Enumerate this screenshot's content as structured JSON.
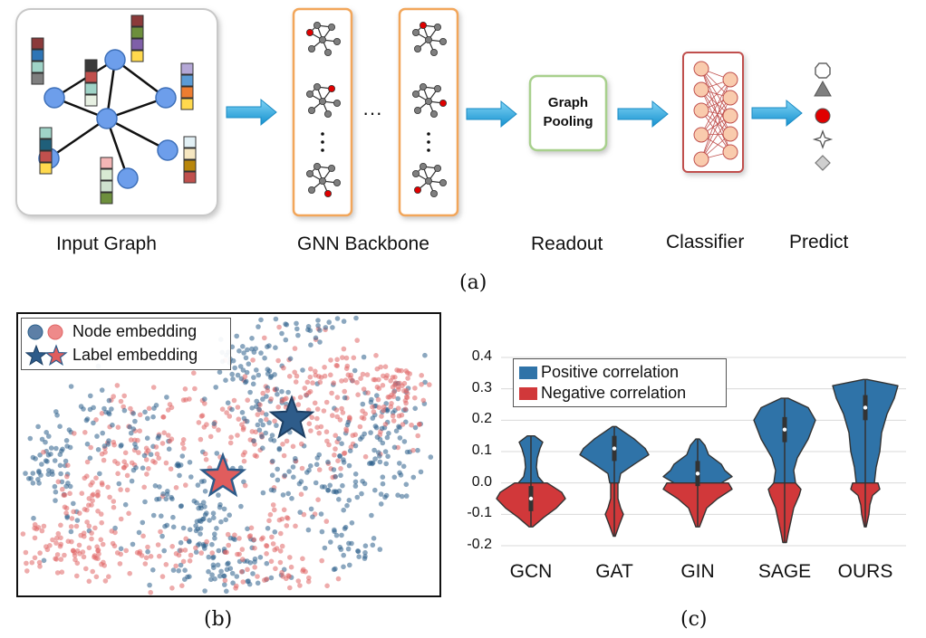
{
  "panel_a": {
    "input_graph_label": "Input Graph",
    "gnn_backbone_label": "GNN Backbone",
    "ellipsis": "···",
    "pooling_line1": "Graph",
    "pooling_line2": "Pooling",
    "readout_label": "Readout",
    "classifier_label": "Classifier",
    "predict_label": "Predict",
    "caption": "(a)",
    "colors": {
      "node_blue": "#6d9eeb",
      "box_orange": "#f2a65a",
      "box_green": "#a8d08d",
      "classifier_red": "#c0504d",
      "arrow_cyan": "#1ba1e2"
    }
  },
  "panel_b": {
    "legend_node": "Node embedding",
    "legend_label": "Label embedding",
    "caption": "(b)",
    "colors": {
      "blue": "#2b5f8a",
      "red": "#e06666",
      "star_red": "#e05d5d",
      "star_blue": "#2e5c8a"
    }
  },
  "panel_c": {
    "legend_pos": "Positive correlation",
    "legend_neg": "Negative correlation",
    "caption": "(c)",
    "colors": {
      "positive": "#2f73a8",
      "negative": "#d1383a"
    }
  },
  "chart_data": {
    "type": "violin",
    "categories": [
      "GCN",
      "GAT",
      "GIN",
      "SAGE",
      "OURS"
    ],
    "ylim": [
      -0.2,
      0.4
    ],
    "yticks": [
      "0.4",
      "0.3",
      "0.2",
      "0.1",
      "0.0",
      "-0.1",
      "-0.2"
    ],
    "grid": true,
    "legend_placement": "top-left",
    "series": [
      {
        "name": "Positive correlation",
        "min": [
          0.0,
          0.0,
          0.0,
          0.0,
          0.0
        ],
        "max": [
          0.15,
          0.18,
          0.14,
          0.27,
          0.33
        ],
        "median": [
          0.05,
          0.11,
          0.03,
          0.17,
          0.24
        ]
      },
      {
        "name": "Negative correlation",
        "min": [
          -0.14,
          -0.17,
          -0.14,
          -0.19,
          -0.14
        ],
        "max": [
          0.0,
          0.0,
          0.0,
          0.0,
          0.0
        ],
        "median": [
          -0.05,
          -0.04,
          -0.02,
          -0.05,
          -0.02
        ]
      }
    ],
    "median_overall": [
      -0.05,
      0.11,
      0.03,
      0.17,
      0.24
    ]
  }
}
